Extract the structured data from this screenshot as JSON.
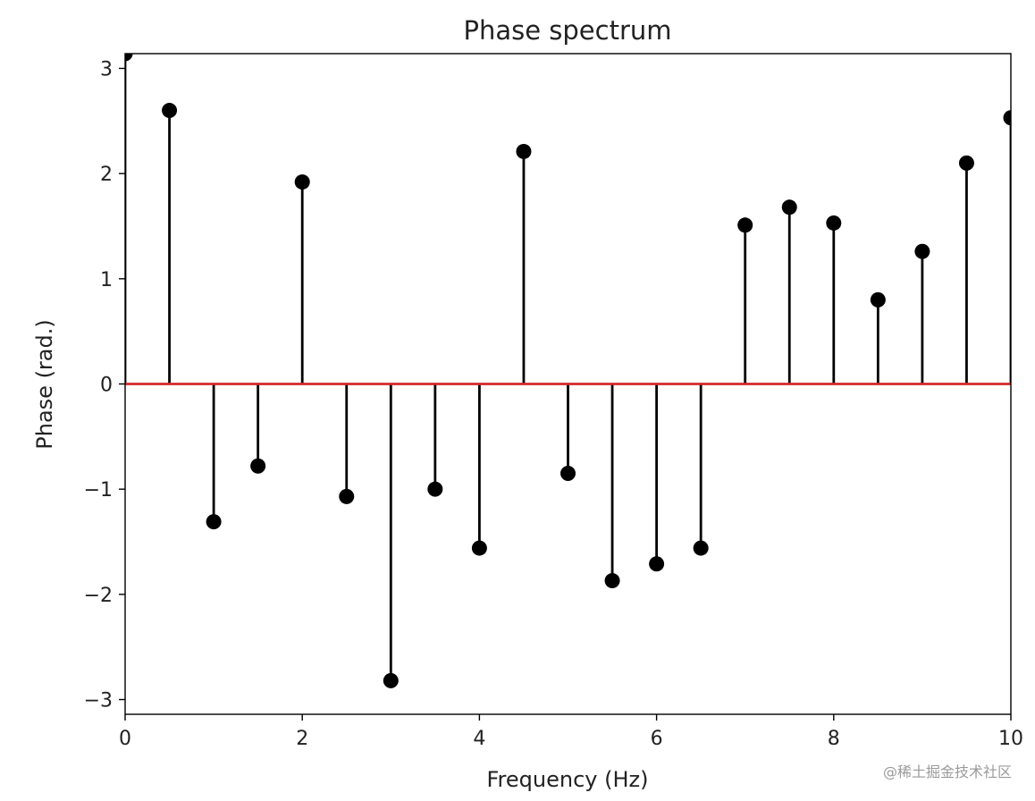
{
  "chart_data": {
    "type": "stem",
    "title": "Phase spectrum",
    "xlabel": "Frequency (Hz)",
    "ylabel": "Phase (rad.)",
    "xlim": [
      0,
      10
    ],
    "ylim": [
      -3.14,
      3.14
    ],
    "x_ticks": [
      0,
      2,
      4,
      6,
      8,
      10
    ],
    "x_tick_labels": [
      "0",
      "2",
      "4",
      "6",
      "8",
      "10"
    ],
    "y_ticks": [
      3,
      2,
      1,
      0,
      -1,
      -2,
      -3
    ],
    "y_tick_labels": [
      "3",
      "2",
      "1",
      "0",
      "−1",
      "−2",
      "−3"
    ],
    "grid": false,
    "baseline": 0,
    "colors": {
      "stems": "#000000",
      "markers": "#000000",
      "baseline": "#d62728",
      "axes": "#000000"
    },
    "points": [
      {
        "x": 0.0,
        "y": 3.14
      },
      {
        "x": 0.5,
        "y": 2.6
      },
      {
        "x": 1.0,
        "y": -1.31
      },
      {
        "x": 1.5,
        "y": -0.78
      },
      {
        "x": 2.0,
        "y": 1.92
      },
      {
        "x": 2.5,
        "y": -1.07
      },
      {
        "x": 3.0,
        "y": -2.82
      },
      {
        "x": 3.5,
        "y": -1.0
      },
      {
        "x": 4.0,
        "y": -1.56
      },
      {
        "x": 4.5,
        "y": 2.21
      },
      {
        "x": 5.0,
        "y": -0.85
      },
      {
        "x": 5.5,
        "y": -1.87
      },
      {
        "x": 6.0,
        "y": -1.71
      },
      {
        "x": 6.5,
        "y": -1.56
      },
      {
        "x": 7.0,
        "y": 1.51
      },
      {
        "x": 7.5,
        "y": 1.68
      },
      {
        "x": 8.0,
        "y": 1.53
      },
      {
        "x": 8.5,
        "y": 0.8
      },
      {
        "x": 9.0,
        "y": 1.26
      },
      {
        "x": 9.5,
        "y": 2.1
      },
      {
        "x": 10.0,
        "y": 2.53
      }
    ]
  },
  "watermark": "@稀土掘金技术社区"
}
